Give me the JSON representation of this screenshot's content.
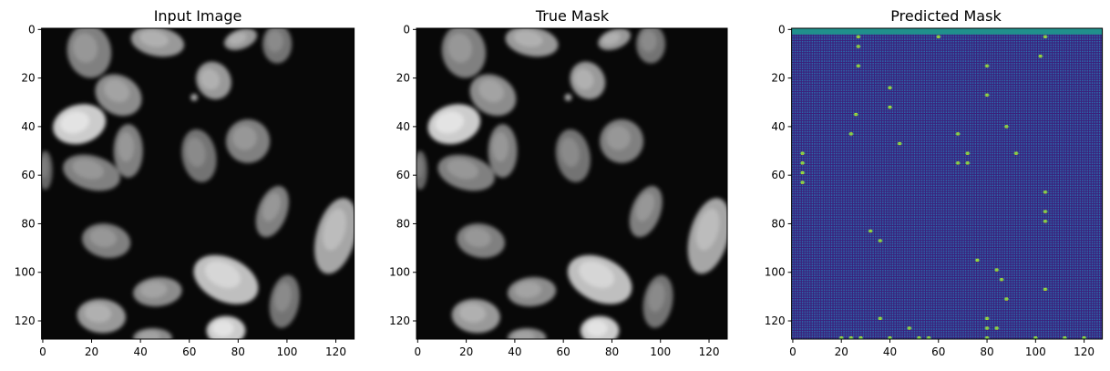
{
  "chart_data": [
    {
      "type": "heatmap",
      "title": "Input Image",
      "colormap": "gray",
      "xlim": [
        0,
        127
      ],
      "ylim": [
        127,
        0
      ],
      "xticks": [
        0,
        20,
        40,
        60,
        80,
        100,
        120
      ],
      "yticks": [
        0,
        20,
        40,
        60,
        80,
        100,
        120
      ],
      "background": "#080808",
      "nuclei": [
        {
          "cx": 19,
          "cy": 9,
          "rx": 9,
          "ry": 11,
          "angle": -10,
          "brightness": 0.5
        },
        {
          "cx": 47,
          "cy": 5,
          "rx": 11,
          "ry": 6,
          "angle": 10,
          "brightness": 0.6
        },
        {
          "cx": 81,
          "cy": 4,
          "rx": 7,
          "ry": 4,
          "angle": -20,
          "brightness": 0.6
        },
        {
          "cx": 96,
          "cy": 6,
          "rx": 6,
          "ry": 8,
          "angle": 0,
          "brightness": 0.45
        },
        {
          "cx": 31,
          "cy": 27,
          "rx": 10,
          "ry": 8,
          "angle": 30,
          "brightness": 0.55
        },
        {
          "cx": 70,
          "cy": 21,
          "rx": 7,
          "ry": 8,
          "angle": -30,
          "brightness": 0.6
        },
        {
          "cx": 15,
          "cy": 39,
          "rx": 11,
          "ry": 8,
          "angle": -15,
          "brightness": 0.8
        },
        {
          "cx": 35,
          "cy": 50,
          "rx": 6,
          "ry": 11,
          "angle": 0,
          "brightness": 0.5
        },
        {
          "cx": 64,
          "cy": 52,
          "rx": 7,
          "ry": 11,
          "angle": -10,
          "brightness": 0.45
        },
        {
          "cx": 84,
          "cy": 46,
          "rx": 9,
          "ry": 9,
          "angle": 0,
          "brightness": 0.5
        },
        {
          "cx": 20,
          "cy": 59,
          "rx": 12,
          "ry": 7,
          "angle": 15,
          "brightness": 0.5
        },
        {
          "cx": 1,
          "cy": 58,
          "rx": 3,
          "ry": 8,
          "angle": 0,
          "brightness": 0.4
        },
        {
          "cx": 94,
          "cy": 75,
          "rx": 6,
          "ry": 11,
          "angle": 20,
          "brightness": 0.5
        },
        {
          "cx": 120,
          "cy": 85,
          "rx": 8,
          "ry": 16,
          "angle": 15,
          "brightness": 0.65
        },
        {
          "cx": 26,
          "cy": 87,
          "rx": 10,
          "ry": 7,
          "angle": 10,
          "brightness": 0.5
        },
        {
          "cx": 75,
          "cy": 103,
          "rx": 14,
          "ry": 9,
          "angle": 25,
          "brightness": 0.75
        },
        {
          "cx": 47,
          "cy": 108,
          "rx": 10,
          "ry": 6,
          "angle": -5,
          "brightness": 0.55
        },
        {
          "cx": 99,
          "cy": 112,
          "rx": 6,
          "ry": 11,
          "angle": 10,
          "brightness": 0.45
        },
        {
          "cx": 24,
          "cy": 118,
          "rx": 10,
          "ry": 7,
          "angle": 5,
          "brightness": 0.6
        },
        {
          "cx": 75,
          "cy": 124,
          "rx": 8,
          "ry": 6,
          "angle": 0,
          "brightness": 0.8
        },
        {
          "cx": 45,
          "cy": 127,
          "rx": 8,
          "ry": 4,
          "angle": 0,
          "brightness": 0.55
        },
        {
          "cx": 62,
          "cy": 28,
          "rx": 1.5,
          "ry": 1.5,
          "angle": 0,
          "brightness": 0.6
        }
      ]
    },
    {
      "type": "heatmap",
      "title": "True Mask",
      "colormap": "gray",
      "xlim": [
        0,
        127
      ],
      "ylim": [
        127,
        0
      ],
      "xticks": [
        0,
        20,
        40,
        60,
        80,
        100,
        120
      ],
      "yticks": [
        0,
        20,
        40,
        60,
        80,
        100,
        120
      ]
    },
    {
      "type": "heatmap",
      "title": "Predicted Mask",
      "colormap": "viridis",
      "xlim": [
        0,
        127
      ],
      "ylim": [
        127,
        0
      ],
      "xticks": [
        0,
        20,
        40,
        60,
        80,
        100,
        120
      ],
      "yticks": [
        0,
        20,
        40,
        60,
        80,
        100,
        120
      ],
      "background_color": "#3b1f7a",
      "grid_dot_color": "#2a6fb0",
      "top_band_rows": [
        0,
        1
      ],
      "top_band_color": "#20908c",
      "hot_pixels": [
        [
          27,
          3
        ],
        [
          60,
          3
        ],
        [
          104,
          3
        ],
        [
          27,
          7
        ],
        [
          102,
          11
        ],
        [
          27,
          15
        ],
        [
          80,
          15
        ],
        [
          40,
          24
        ],
        [
          80,
          27
        ],
        [
          40,
          32
        ],
        [
          26,
          35
        ],
        [
          88,
          40
        ],
        [
          24,
          43
        ],
        [
          68,
          43
        ],
        [
          44,
          47
        ],
        [
          4,
          51
        ],
        [
          72,
          51
        ],
        [
          92,
          51
        ],
        [
          4,
          55
        ],
        [
          68,
          55
        ],
        [
          72,
          55
        ],
        [
          4,
          59
        ],
        [
          4,
          63
        ],
        [
          104,
          67
        ],
        [
          104,
          75
        ],
        [
          104,
          79
        ],
        [
          32,
          83
        ],
        [
          36,
          87
        ],
        [
          76,
          95
        ],
        [
          84,
          99
        ],
        [
          86,
          103
        ],
        [
          104,
          107
        ],
        [
          88,
          111
        ],
        [
          36,
          119
        ],
        [
          80,
          119
        ],
        [
          48,
          123
        ],
        [
          80,
          123
        ],
        [
          84,
          123
        ],
        [
          20,
          127
        ],
        [
          24,
          127
        ],
        [
          28,
          127
        ],
        [
          40,
          127
        ],
        [
          52,
          127
        ],
        [
          56,
          127
        ],
        [
          80,
          127
        ],
        [
          100,
          127
        ],
        [
          112,
          127
        ],
        [
          120,
          127
        ]
      ]
    }
  ]
}
